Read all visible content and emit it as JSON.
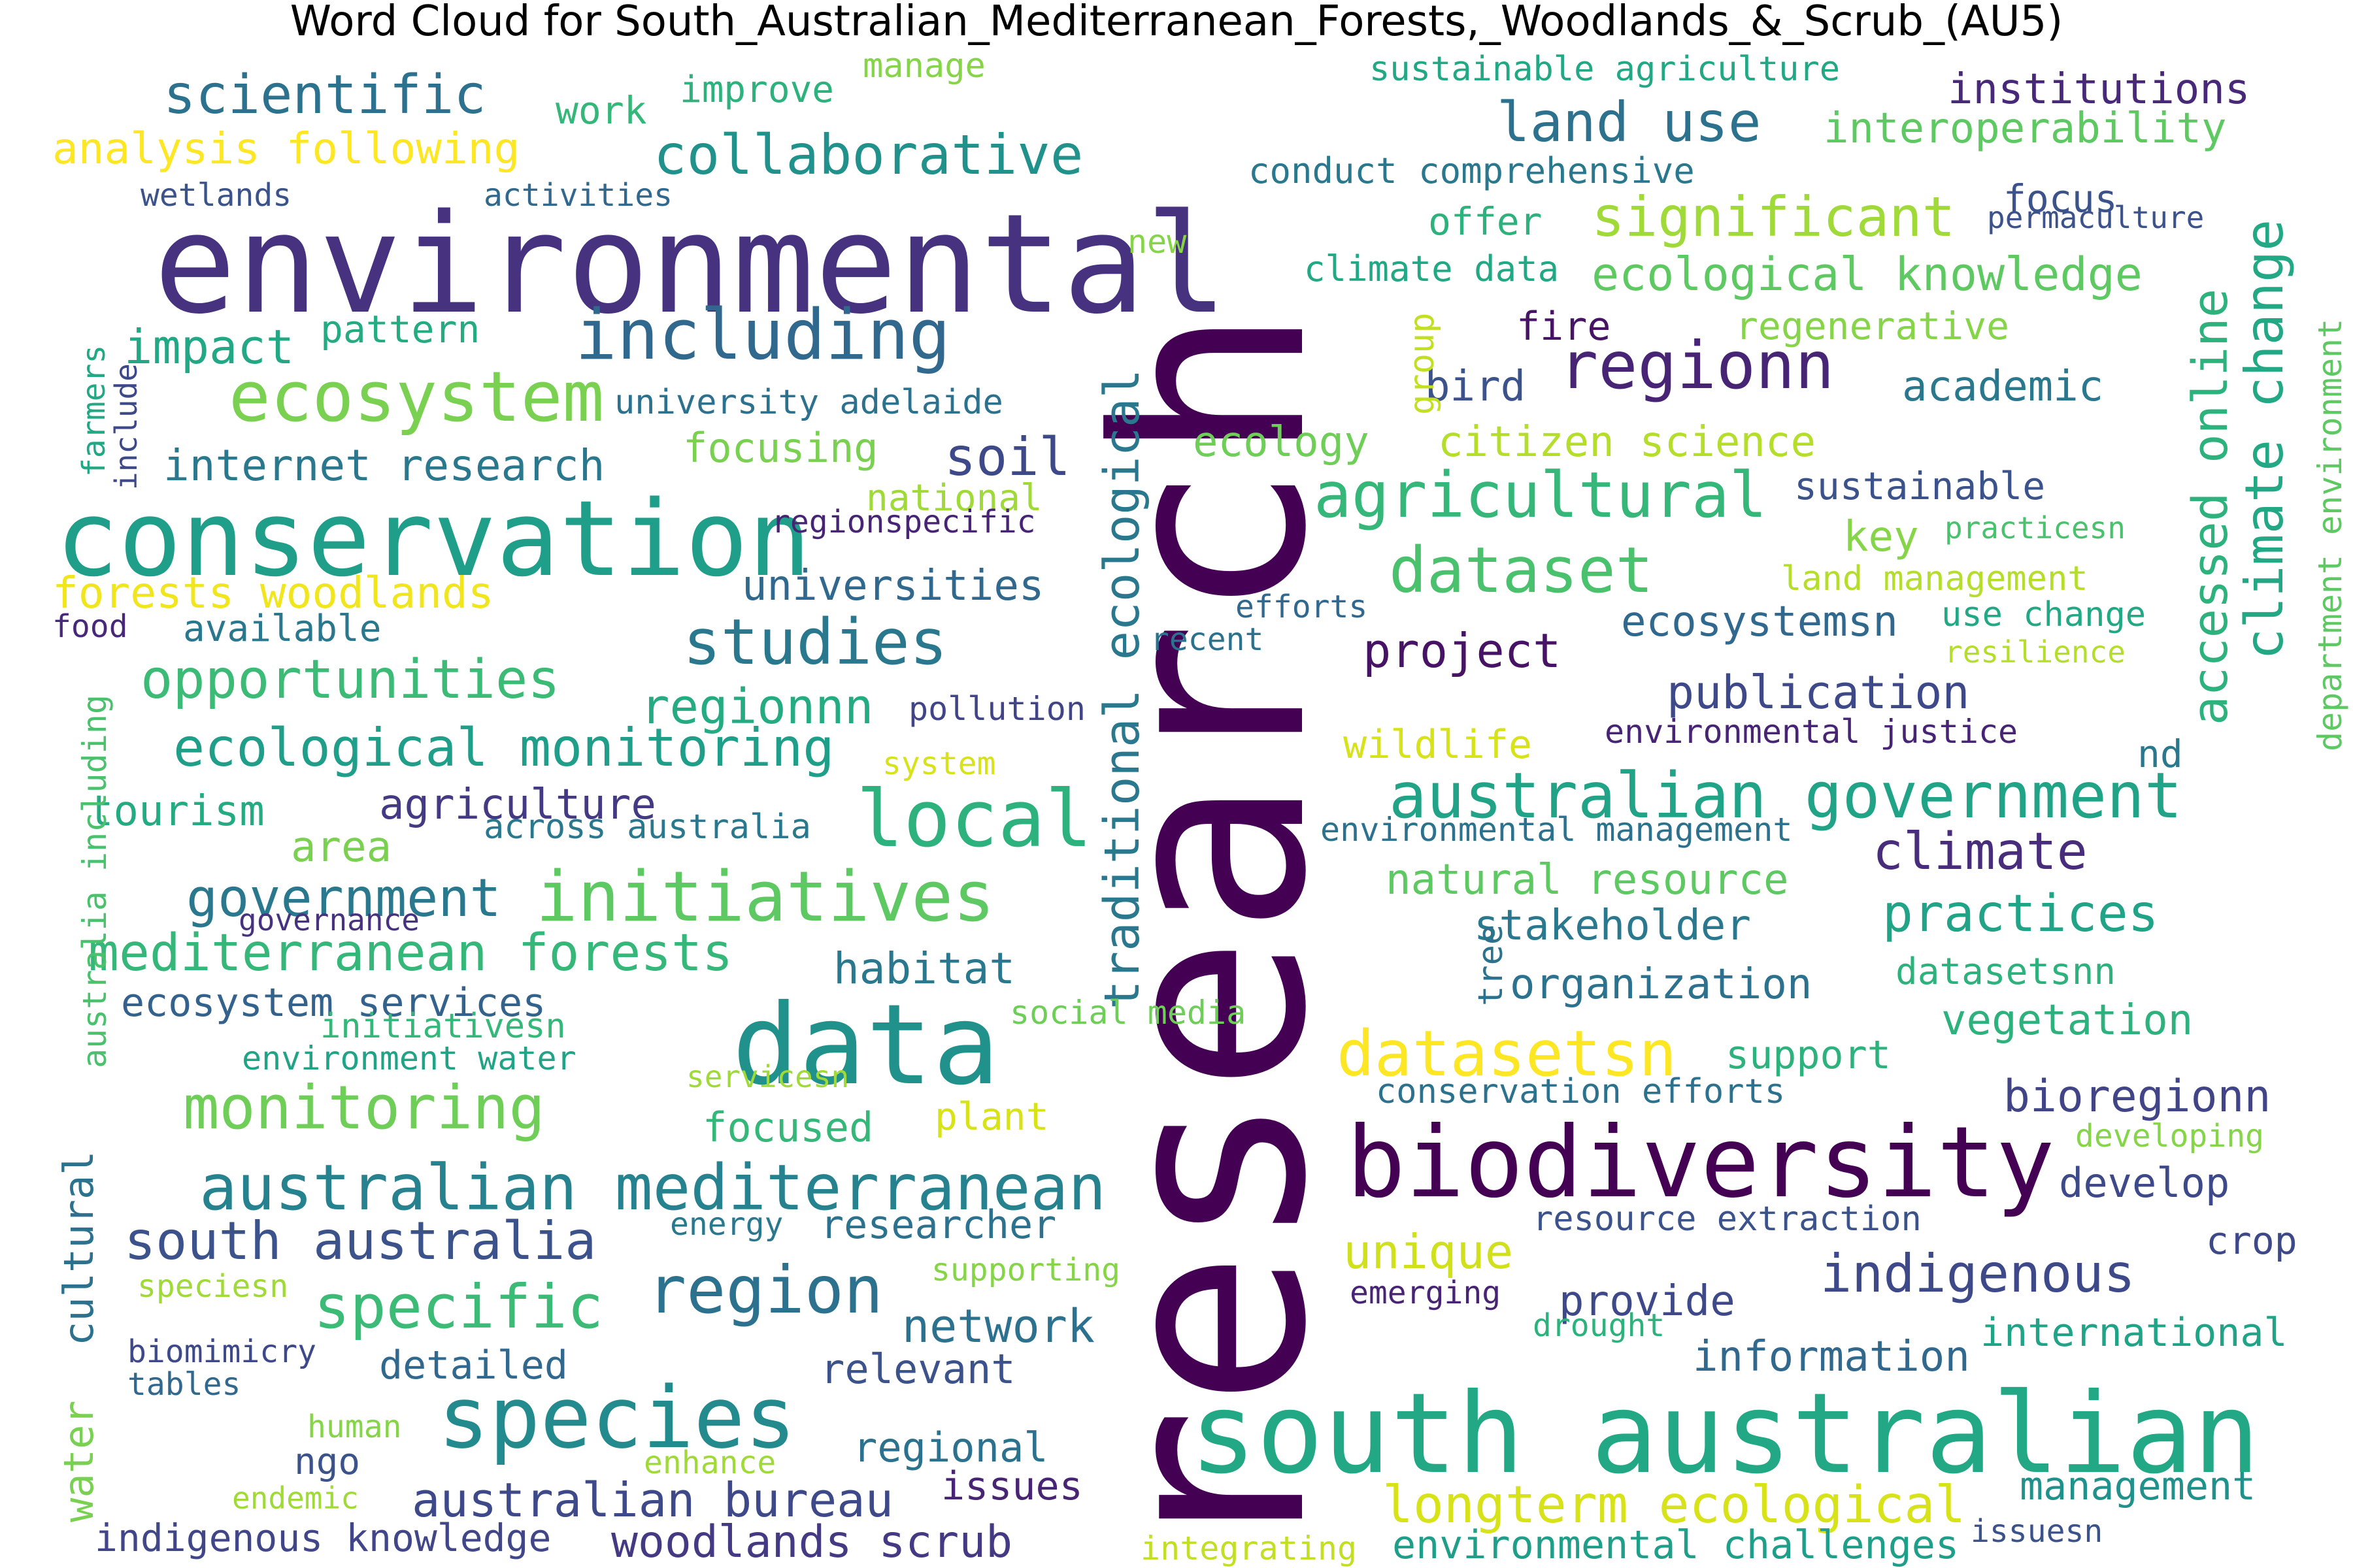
{
  "chart_data": {
    "type": "wordcloud",
    "title": "Word Cloud for South_Australian_Mediterranean_Forests,_Woodlands_&_Scrub_(AU5)",
    "colormap": "viridis",
    "background": "#ffffff",
    "words": [
      {
        "text": "research",
        "weight": 1.0,
        "color": "#440154"
      },
      {
        "text": "environmental",
        "weight": 0.56,
        "color": "#46327e"
      },
      {
        "text": "data",
        "weight": 0.53,
        "color": "#21918c"
      },
      {
        "text": "south australian",
        "weight": 0.5,
        "color": "#22a884"
      },
      {
        "text": "conservation",
        "weight": 0.47,
        "color": "#1f9e89"
      },
      {
        "text": "biodiversity",
        "weight": 0.47,
        "color": "#440154"
      },
      {
        "text": "species",
        "weight": 0.4,
        "color": "#238a8d"
      },
      {
        "text": "local",
        "weight": 0.38,
        "color": "#2db27d"
      },
      {
        "text": "initiatives",
        "weight": 0.36,
        "color": "#5ec962"
      },
      {
        "text": "ecosystem",
        "weight": 0.36,
        "color": "#7ad151"
      },
      {
        "text": "including",
        "weight": 0.36,
        "color": "#31688e"
      },
      {
        "text": "australian mediterranean",
        "weight": 0.35,
        "color": "#26828e"
      },
      {
        "text": "australian government",
        "weight": 0.35,
        "color": "#20a386"
      },
      {
        "text": "region",
        "weight": 0.34,
        "color": "#2c728e"
      },
      {
        "text": "regionn",
        "weight": 0.34,
        "color": "#482475"
      },
      {
        "text": "datasetsn",
        "weight": 0.34,
        "color": "#fde725"
      },
      {
        "text": "agricultural",
        "weight": 0.33,
        "color": "#35b779"
      },
      {
        "text": "dataset",
        "weight": 0.33,
        "color": "#4ac16d"
      },
      {
        "text": "studies",
        "weight": 0.32,
        "color": "#2a788e"
      },
      {
        "text": "specific",
        "weight": 0.31,
        "color": "#3bbb75"
      },
      {
        "text": "monitoring",
        "weight": 0.31,
        "color": "#6ece58"
      },
      {
        "text": "collaborative",
        "weight": 0.3,
        "color": "#21918c"
      },
      {
        "text": "land use",
        "weight": 0.3,
        "color": "#2c728e"
      },
      {
        "text": "significant",
        "weight": 0.3,
        "color": "#a0da39"
      },
      {
        "text": "scientific",
        "weight": 0.29,
        "color": "#2c728e"
      },
      {
        "text": "opportunities",
        "weight": 0.29,
        "color": "#3bbb75"
      },
      {
        "text": "ecological monitoring",
        "weight": 0.28,
        "color": "#1f9e89"
      },
      {
        "text": "south australia",
        "weight": 0.28,
        "color": "#3b528b"
      },
      {
        "text": "mediterranean forests",
        "weight": 0.28,
        "color": "#35b779"
      },
      {
        "text": "longterm ecological",
        "weight": 0.28,
        "color": "#d8e219"
      },
      {
        "text": "indigenous",
        "weight": 0.28,
        "color": "#3e4989"
      },
      {
        "text": "soil",
        "weight": 0.28,
        "color": "#3e4989"
      },
      {
        "text": "government",
        "weight": 0.28,
        "color": "#2a788e"
      },
      {
        "text": "species_",
        "weight": 0.0,
        "color": "#000000",
        "hidden": true
      },
      {
        "text": "climate change",
        "weight": 0.27,
        "color": "#22a884"
      },
      {
        "text": "traditional ecological",
        "weight": 0.27,
        "color": "#2a788e"
      },
      {
        "text": "accessed online",
        "weight": 0.27,
        "color": "#2db27d"
      },
      {
        "text": "practices",
        "weight": 0.27,
        "color": "#20a386"
      },
      {
        "text": "climate",
        "weight": 0.27,
        "color": "#472d7b"
      },
      {
        "text": "regionnn",
        "weight": 0.25,
        "color": "#25ab82"
      },
      {
        "text": "australian bureau",
        "weight": 0.25,
        "color": "#3e4989"
      },
      {
        "text": "woodlands scrub",
        "weight": 0.24,
        "color": "#443a83"
      },
      {
        "text": "ecological knowledge",
        "weight": 0.24,
        "color": "#5ec962"
      },
      {
        "text": "unique",
        "weight": 0.24,
        "color": "#d0e11c"
      },
      {
        "text": "network",
        "weight": 0.24,
        "color": "#2c728e"
      },
      {
        "text": "bioregionn",
        "weight": 0.24,
        "color": "#414487"
      },
      {
        "text": "publication",
        "weight": 0.24,
        "color": "#3e4989"
      },
      {
        "text": "habitat",
        "weight": 0.23,
        "color": "#2a788e"
      },
      {
        "text": "focused",
        "weight": 0.22,
        "color": "#35b779"
      },
      {
        "text": "analysis following",
        "weight": 0.22,
        "color": "#fde725"
      },
      {
        "text": "forests woodlands",
        "weight": 0.22,
        "color": "#f1e51d"
      },
      {
        "text": "internet research",
        "weight": 0.22,
        "color": "#2a788e"
      },
      {
        "text": "impact",
        "weight": 0.22,
        "color": "#22a884"
      },
      {
        "text": "universities",
        "weight": 0.22,
        "color": "#31688e"
      },
      {
        "text": "project",
        "weight": 0.22,
        "color": "#471365"
      },
      {
        "text": "ecosystemsn",
        "weight": 0.22,
        "color": "#31688e"
      },
      {
        "text": "institutions",
        "weight": 0.22,
        "color": "#482878"
      },
      {
        "text": "interoperability",
        "weight": 0.22,
        "color": "#5ec962"
      },
      {
        "text": "academic",
        "weight": 0.21,
        "color": "#2a788e"
      },
      {
        "text": "bird",
        "weight": 0.21,
        "color": "#3b528b"
      },
      {
        "text": "tourism",
        "weight": 0.21,
        "color": "#25ab82"
      },
      {
        "text": "agriculture",
        "weight": 0.21,
        "color": "#443a83"
      },
      {
        "text": "area",
        "weight": 0.21,
        "color": "#7ad151"
      },
      {
        "text": "key",
        "weight": 0.21,
        "color": "#86d549"
      },
      {
        "text": "focusing",
        "weight": 0.21,
        "color": "#7ad151"
      },
      {
        "text": "ecology",
        "weight": 0.21,
        "color": "#6ece58"
      },
      {
        "text": "citizen science",
        "weight": 0.21,
        "color": "#b5de2b"
      },
      {
        "text": "natural resource",
        "weight": 0.21,
        "color": "#5ec962"
      },
      {
        "text": "stakeholder",
        "weight": 0.21,
        "color": "#2a788e"
      },
      {
        "text": "organization",
        "weight": 0.21,
        "color": "#2c728e"
      },
      {
        "text": "vegetation",
        "weight": 0.21,
        "color": "#2db27d"
      },
      {
        "text": "information",
        "weight": 0.21,
        "color": "#31688e"
      },
      {
        "text": "provide",
        "weight": 0.21,
        "color": "#3e4989"
      },
      {
        "text": "relevant",
        "weight": 0.21,
        "color": "#3b528b"
      },
      {
        "text": "regional",
        "weight": 0.21,
        "color": "#2c728e"
      },
      {
        "text": "issues",
        "weight": 0.21,
        "color": "#482475"
      },
      {
        "text": "develop",
        "weight": 0.21,
        "color": "#3e4989"
      },
      {
        "text": "management",
        "weight": 0.2,
        "color": "#21918c"
      },
      {
        "text": "environmental challenges",
        "weight": 0.2,
        "color": "#1f9e89"
      },
      {
        "text": "international",
        "weight": 0.2,
        "color": "#20a386"
      },
      {
        "text": "researcher",
        "weight": 0.2,
        "color": "#2c728e"
      },
      {
        "text": "ecosystem services",
        "weight": 0.2,
        "color": "#33638d"
      },
      {
        "text": "indigenous knowledge",
        "weight": 0.2,
        "color": "#404688"
      },
      {
        "text": "cultural",
        "weight": 0.2,
        "color": "#2c728e"
      },
      {
        "text": "water",
        "weight": 0.2,
        "color": "#7ad151"
      },
      {
        "text": "wildlife",
        "weight": 0.2,
        "color": "#d8e219"
      },
      {
        "text": "support",
        "weight": 0.2,
        "color": "#2db27d"
      },
      {
        "text": "detailed",
        "weight": 0.2,
        "color": "#31688e"
      },
      {
        "text": "fire",
        "weight": 0.19,
        "color": "#471365"
      },
      {
        "text": "work",
        "weight": 0.19,
        "color": "#35b779"
      },
      {
        "text": "improve",
        "weight": 0.19,
        "color": "#2db27d"
      },
      {
        "text": "pattern",
        "weight": 0.19,
        "color": "#25ab82"
      },
      {
        "text": "sustainable",
        "weight": 0.19,
        "color": "#3b528b"
      },
      {
        "text": "focus",
        "weight": 0.19,
        "color": "#3b528b"
      },
      {
        "text": "offer",
        "weight": 0.19,
        "color": "#2db27d"
      },
      {
        "text": "regenerative",
        "weight": 0.19,
        "color": "#86d549"
      },
      {
        "text": "climate data",
        "weight": 0.18,
        "color": "#22a884"
      },
      {
        "text": "conduct comprehensive",
        "weight": 0.18,
        "color": "#2a788e"
      },
      {
        "text": "plant",
        "weight": 0.18,
        "color": "#d8e219"
      },
      {
        "text": "ngo",
        "weight": 0.18,
        "color": "#3b528b"
      },
      {
        "text": "crop",
        "weight": 0.18,
        "color": "#3e4989"
      },
      {
        "text": "nd",
        "weight": 0.18,
        "color": "#2a788e"
      },
      {
        "text": "datasetsnn",
        "weight": 0.18,
        "color": "#2db27d"
      },
      {
        "text": "national",
        "weight": 0.18,
        "color": "#a0da39"
      },
      {
        "text": "available",
        "weight": 0.18,
        "color": "#2a788e"
      },
      {
        "text": "manage",
        "weight": 0.17,
        "color": "#86d549"
      },
      {
        "text": "sustainable agriculture",
        "weight": 0.17,
        "color": "#22a884"
      },
      {
        "text": "land management",
        "weight": 0.17,
        "color": "#b5de2b"
      },
      {
        "text": "use change",
        "weight": 0.17,
        "color": "#22a884"
      },
      {
        "text": "resource extraction",
        "weight": 0.17,
        "color": "#3b528b"
      },
      {
        "text": "conservation efforts",
        "weight": 0.17,
        "color": "#2c728e"
      },
      {
        "text": "university adelaide",
        "weight": 0.17,
        "color": "#2c728e"
      },
      {
        "text": "across australia",
        "weight": 0.17,
        "color": "#2a788e"
      },
      {
        "text": "environment water",
        "weight": 0.16,
        "color": "#20a386"
      },
      {
        "text": "initiativesn",
        "weight": 0.16,
        "color": "#35b779"
      },
      {
        "text": "environmental management",
        "weight": 0.16,
        "color": "#2c728e"
      },
      {
        "text": "environmental justice",
        "weight": 0.16,
        "color": "#482475"
      },
      {
        "text": "social media",
        "weight": 0.16,
        "color": "#6ece58"
      },
      {
        "text": "australia including",
        "weight": 0.16,
        "color": "#4ac16d"
      },
      {
        "text": "department environment",
        "weight": 0.16,
        "color": "#5ec962"
      },
      {
        "text": "tree",
        "weight": 0.16,
        "color": "#2c728e"
      },
      {
        "text": "group",
        "weight": 0.16,
        "color": "#c2df23"
      },
      {
        "text": "pollution",
        "weight": 0.16,
        "color": "#414487"
      },
      {
        "text": "new",
        "weight": 0.16,
        "color": "#86d549"
      },
      {
        "text": "permaculture",
        "weight": 0.15,
        "color": "#3b528b"
      },
      {
        "text": "regionspecific",
        "weight": 0.15,
        "color": "#482475"
      },
      {
        "text": "practicesn",
        "weight": 0.15,
        "color": "#4ac16d"
      },
      {
        "text": "resilience",
        "weight": 0.15,
        "color": "#b5de2b"
      },
      {
        "text": "biomimicry",
        "weight": 0.15,
        "color": "#3e4989"
      },
      {
        "text": "tables",
        "weight": 0.15,
        "color": "#31688e"
      },
      {
        "text": "wetlands",
        "weight": 0.15,
        "color": "#3b528b"
      },
      {
        "text": "activities",
        "weight": 0.15,
        "color": "#31688e"
      },
      {
        "text": "efforts",
        "weight": 0.15,
        "color": "#31688e"
      },
      {
        "text": "recent",
        "weight": 0.15,
        "color": "#2c728e"
      },
      {
        "text": "system",
        "weight": 0.15,
        "color": "#d8e219"
      },
      {
        "text": "food",
        "weight": 0.15,
        "color": "#482878"
      },
      {
        "text": "farmers",
        "weight": 0.15,
        "color": "#22a884"
      },
      {
        "text": "include",
        "weight": 0.15,
        "color": "#3e4989"
      },
      {
        "text": "governance",
        "weight": 0.15,
        "color": "#46327e"
      },
      {
        "text": "servicesn",
        "weight": 0.15,
        "color": "#a0da39"
      },
      {
        "text": "energy",
        "weight": 0.15,
        "color": "#2a788e"
      },
      {
        "text": "supporting",
        "weight": 0.15,
        "color": "#86d549"
      },
      {
        "text": "speciesn",
        "weight": 0.15,
        "color": "#a0da39"
      },
      {
        "text": "human",
        "weight": 0.15,
        "color": "#86d549"
      },
      {
        "text": "enhance",
        "weight": 0.15,
        "color": "#a0da39"
      },
      {
        "text": "endemic",
        "weight": 0.15,
        "color": "#a0da39"
      },
      {
        "text": "integrating",
        "weight": 0.15,
        "color": "#c2df23"
      },
      {
        "text": "issuesn",
        "weight": 0.15,
        "color": "#3b528b"
      },
      {
        "text": "emerging",
        "weight": 0.15,
        "color": "#482475"
      },
      {
        "text": "drought",
        "weight": 0.15,
        "color": "#2db27d"
      },
      {
        "text": "developing",
        "weight": 0.15,
        "color": "#86d549"
      }
    ]
  }
}
